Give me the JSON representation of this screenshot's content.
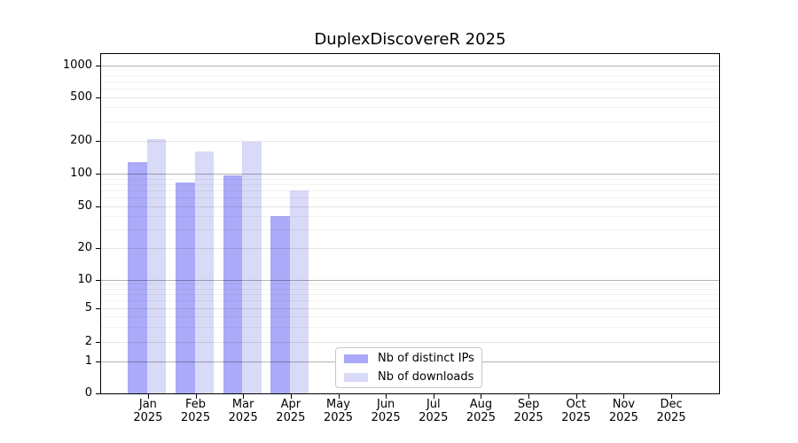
{
  "chart_data": {
    "type": "bar",
    "title": "DuplexDiscovereR 2025",
    "x_tick_labels": [
      {
        "month": "Jan",
        "year": "2025"
      },
      {
        "month": "Feb",
        "year": "2025"
      },
      {
        "month": "Mar",
        "year": "2025"
      },
      {
        "month": "Apr",
        "year": "2025"
      },
      {
        "month": "May",
        "year": "2025"
      },
      {
        "month": "Jun",
        "year": "2025"
      },
      {
        "month": "Jul",
        "year": "2025"
      },
      {
        "month": "Aug",
        "year": "2025"
      },
      {
        "month": "Sep",
        "year": "2025"
      },
      {
        "month": "Oct",
        "year": "2025"
      },
      {
        "month": "Nov",
        "year": "2025"
      },
      {
        "month": "Dec",
        "year": "2025"
      }
    ],
    "categories": [
      "Jan 2025",
      "Feb 2025",
      "Mar 2025",
      "Apr 2025",
      "May 2025",
      "Jun 2025",
      "Jul 2025",
      "Aug 2025",
      "Sep 2025",
      "Oct 2025",
      "Nov 2025",
      "Dec 2025"
    ],
    "series": [
      {
        "name": "Nb of distinct IPs",
        "color": "#aaaaf8",
        "values": [
          127,
          82,
          96,
          40,
          0,
          0,
          0,
          0,
          0,
          0,
          0,
          0
        ]
      },
      {
        "name": "Nb of downloads",
        "color": "#d9d9f8",
        "values": [
          205,
          160,
          195,
          70,
          0,
          0,
          0,
          0,
          0,
          0,
          0,
          0
        ]
      }
    ],
    "y_axis": {
      "scale": "log-like",
      "tick_values": [
        1000,
        500,
        200,
        100,
        50,
        20,
        10,
        5,
        2,
        1,
        0
      ],
      "tick_labels": [
        "1000",
        "500",
        "200",
        "100",
        "50",
        "20",
        "10",
        "5",
        "2",
        "1",
        "0"
      ],
      "major_values": [
        1,
        10,
        100,
        1000
      ],
      "minor_values": [
        3,
        4,
        6,
        7,
        8,
        9,
        30,
        40,
        60,
        70,
        80,
        90,
        300,
        400,
        600,
        700,
        800,
        900
      ],
      "range": [
        0,
        1000
      ]
    },
    "grid": true,
    "legend_position": "inside-bottom-center",
    "colors": {
      "grid_major": "#b3b3b3",
      "grid_labeled": "#e6e6e6",
      "grid_minor": "#f2f2f2",
      "axis": "#000000",
      "legend_border": "#c8c8c8",
      "background": "#ffffff"
    }
  }
}
